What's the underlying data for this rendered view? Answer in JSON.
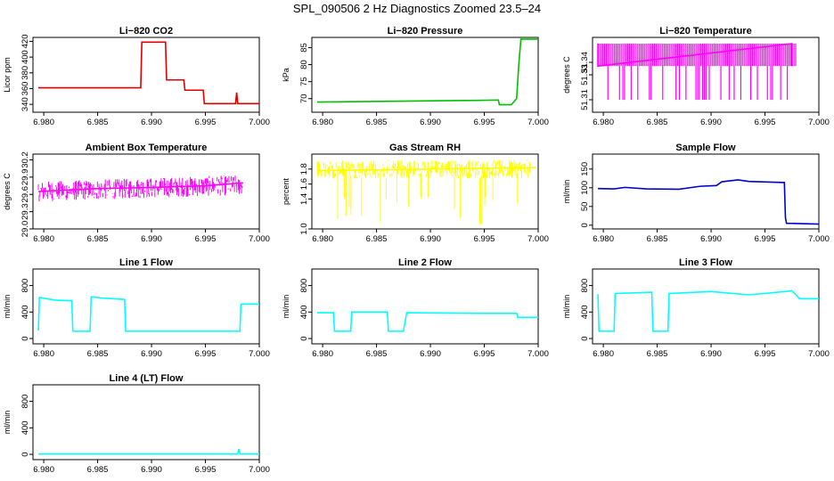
{
  "figure_title": "SPL_090506  2 Hz Diagnostics Zoomed 23.5–24",
  "colors": {
    "red": "#e00000",
    "green": "#00c000",
    "magenta": "#ff00ff",
    "yellow": "#ffff00",
    "blue": "#0000c8",
    "cyan": "#00ffff"
  },
  "chart_data": [
    {
      "type": "line",
      "title": "Li−820 CO2",
      "ylabel": "Licor ppm",
      "color": "red",
      "xlim": [
        6.979,
        7.0
      ],
      "ylim": [
        330,
        425
      ],
      "xticks": [
        "6.980",
        "6.985",
        "6.990",
        "6.995",
        "7.000"
      ],
      "yticks": [
        "340",
        "360",
        "380",
        "400",
        "420"
      ],
      "points": [
        [
          6.9795,
          361
        ],
        [
          6.989,
          361
        ],
        [
          6.9891,
          419
        ],
        [
          6.9913,
          419
        ],
        [
          6.9914,
          371
        ],
        [
          6.993,
          371
        ],
        [
          6.9931,
          358
        ],
        [
          6.9948,
          358
        ],
        [
          6.9949,
          341
        ],
        [
          6.9978,
          341
        ],
        [
          6.9979,
          355
        ],
        [
          6.998,
          341
        ],
        [
          7.0,
          341
        ]
      ]
    },
    {
      "type": "line",
      "title": "Li−820 Pressure",
      "ylabel": "kPa",
      "color": "green",
      "xlim": [
        6.979,
        7.0
      ],
      "ylim": [
        66,
        88
      ],
      "xticks": [
        "6.980",
        "6.985",
        "6.990",
        "6.995",
        "7.000"
      ],
      "yticks": [
        "70",
        "75",
        "80",
        "85"
      ],
      "points": [
        [
          6.9795,
          69
        ],
        [
          6.9945,
          69.5
        ],
        [
          6.9963,
          69.6
        ],
        [
          6.9964,
          68.2
        ],
        [
          6.9975,
          68.2
        ],
        [
          6.998,
          70
        ],
        [
          6.9982,
          80
        ],
        [
          6.9984,
          87.5
        ],
        [
          7.0,
          87.5
        ]
      ]
    },
    {
      "type": "line",
      "title": "Li−820 Temperature",
      "ylabel": "degrees C",
      "color": "magenta",
      "xlim": [
        6.979,
        7.0
      ],
      "ylim": [
        51.3,
        51.36
      ],
      "xticks": [
        "6.980",
        "6.985",
        "6.990",
        "6.995",
        "7.000"
      ],
      "yticks": [
        "51.31",
        "51.33",
        "51.34"
      ],
      "points": [
        [
          6.9795,
          51.355
        ],
        [
          6.9795,
          51.337
        ],
        [
          6.9975,
          51.355
        ],
        [
          6.9975,
          51.337
        ]
      ]
    },
    {
      "type": "line",
      "title": "Ambient Box Temperature",
      "ylabel": "degrees C",
      "color": "magenta",
      "xlim": [
        6.979,
        7.0
      ],
      "ylim": [
        29.0,
        30.3
      ],
      "xticks": [
        "6.980",
        "6.985",
        "6.990",
        "6.995",
        "7.000"
      ],
      "yticks": [
        "29.0",
        "29.3",
        "29.6",
        "29.9",
        "30.2"
      ],
      "points": [
        [
          6.9795,
          29.65
        ],
        [
          6.9848,
          29.7
        ],
        [
          6.99,
          29.72
        ],
        [
          6.995,
          29.75
        ],
        [
          6.9985,
          29.8
        ]
      ]
    },
    {
      "type": "line",
      "title": "Gas Stream RH",
      "ylabel": "percent",
      "color": "yellow",
      "xlim": [
        6.979,
        7.0
      ],
      "ylim": [
        1.0,
        2.0
      ],
      "xticks": [
        "6.980",
        "6.985",
        "6.990",
        "6.995",
        "7.000"
      ],
      "yticks": [
        "1.0",
        "1.4",
        "1.6",
        "1.8"
      ],
      "points": [
        [
          6.9795,
          1.78
        ],
        [
          6.9998,
          1.82
        ]
      ]
    },
    {
      "type": "line",
      "title": "Sample Flow",
      "ylabel": "ml/min",
      "color": "blue",
      "xlim": [
        6.979,
        7.0
      ],
      "ylim": [
        -10,
        190
      ],
      "xticks": [
        "6.980",
        "6.985",
        "6.990",
        "6.995",
        "7.000"
      ],
      "yticks": [
        "0",
        "50",
        "100",
        "150"
      ],
      "points": [
        [
          6.9795,
          98
        ],
        [
          6.981,
          97
        ],
        [
          6.982,
          101
        ],
        [
          6.984,
          97
        ],
        [
          6.987,
          96
        ],
        [
          6.989,
          104
        ],
        [
          6.9905,
          106
        ],
        [
          6.991,
          116
        ],
        [
          6.9925,
          121
        ],
        [
          6.9935,
          117
        ],
        [
          6.9968,
          114
        ],
        [
          6.9969,
          20
        ],
        [
          6.997,
          5
        ],
        [
          7.0,
          3
        ]
      ]
    },
    {
      "type": "line",
      "title": "Line 1 Flow",
      "ylabel": "ml/min",
      "color": "cyan",
      "xlim": [
        6.979,
        7.0
      ],
      "ylim": [
        -80,
        1050
      ],
      "xticks": [
        "6.980",
        "6.985",
        "6.990",
        "6.995",
        "7.000"
      ],
      "yticks": [
        "0",
        "400",
        "800"
      ],
      "points": [
        [
          6.9795,
          120
        ],
        [
          6.9796,
          620
        ],
        [
          6.981,
          580
        ],
        [
          6.9826,
          570
        ],
        [
          6.9827,
          110
        ],
        [
          6.9843,
          110
        ],
        [
          6.9844,
          630
        ],
        [
          6.9855,
          610
        ],
        [
          6.9875,
          590
        ],
        [
          6.9876,
          110
        ],
        [
          6.9982,
          110
        ],
        [
          6.9983,
          520
        ],
        [
          7.0,
          520
        ]
      ]
    },
    {
      "type": "line",
      "title": "Line 2 Flow",
      "ylabel": "ml/min",
      "color": "cyan",
      "xlim": [
        6.979,
        7.0
      ],
      "ylim": [
        -80,
        1050
      ],
      "xticks": [
        "6.980",
        "6.985",
        "6.990",
        "6.995",
        "7.000"
      ],
      "yticks": [
        "0",
        "400",
        "800"
      ],
      "points": [
        [
          6.9795,
          390
        ],
        [
          6.981,
          390
        ],
        [
          6.9811,
          110
        ],
        [
          6.9826,
          110
        ],
        [
          6.9827,
          400
        ],
        [
          6.986,
          400
        ],
        [
          6.9861,
          110
        ],
        [
          6.9875,
          110
        ],
        [
          6.9878,
          390
        ],
        [
          6.995,
          380
        ],
        [
          6.998,
          380
        ],
        [
          6.9981,
          320
        ],
        [
          7.0,
          320
        ]
      ]
    },
    {
      "type": "line",
      "title": "Line 3 Flow",
      "ylabel": "ml/min",
      "color": "cyan",
      "xlim": [
        6.979,
        7.0
      ],
      "ylim": [
        -80,
        1050
      ],
      "xticks": [
        "6.980",
        "6.985",
        "6.990",
        "6.995",
        "7.000"
      ],
      "yticks": [
        "0",
        "400",
        "800"
      ],
      "points": [
        [
          6.9795,
          670
        ],
        [
          6.9796,
          110
        ],
        [
          6.981,
          110
        ],
        [
          6.9811,
          680
        ],
        [
          6.9845,
          700
        ],
        [
          6.9846,
          110
        ],
        [
          6.986,
          110
        ],
        [
          6.9861,
          680
        ],
        [
          6.99,
          710
        ],
        [
          6.9935,
          660
        ],
        [
          6.9975,
          720
        ],
        [
          6.998,
          640
        ],
        [
          6.9982,
          600
        ],
        [
          7.0,
          600
        ]
      ]
    },
    {
      "type": "line",
      "title": "Line 4 (LT) Flow",
      "ylabel": "ml/min",
      "color": "cyan",
      "xlim": [
        6.979,
        7.0
      ],
      "ylim": [
        -80,
        1050
      ],
      "xticks": [
        "6.980",
        "6.985",
        "6.990",
        "6.995",
        "7.000"
      ],
      "yticks": [
        "0",
        "400",
        "800"
      ],
      "points": [
        [
          6.9795,
          5
        ],
        [
          6.998,
          5
        ],
        [
          6.9981,
          80
        ],
        [
          6.9982,
          5
        ],
        [
          7.0,
          5
        ]
      ]
    }
  ]
}
